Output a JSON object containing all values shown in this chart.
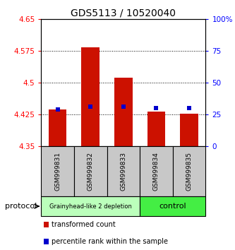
{
  "title": "GDS5113 / 10520040",
  "samples": [
    "GSM999831",
    "GSM999832",
    "GSM999833",
    "GSM999834",
    "GSM999835"
  ],
  "bar_bottoms": [
    4.35,
    4.35,
    4.35,
    4.35,
    4.35
  ],
  "bar_tops": [
    4.437,
    4.583,
    4.511,
    4.432,
    4.427
  ],
  "percentile_values": [
    4.437,
    4.444,
    4.444,
    4.44,
    4.44
  ],
  "bar_color": "#cc1100",
  "percentile_color": "#0000cc",
  "ylim": [
    4.35,
    4.65
  ],
  "yticks": [
    4.35,
    4.425,
    4.5,
    4.575,
    4.65
  ],
  "ytick_labels": [
    "4.35",
    "4.425",
    "4.5",
    "4.575",
    "4.65"
  ],
  "y2lim": [
    0,
    100
  ],
  "y2ticks": [
    0,
    25,
    50,
    75,
    100
  ],
  "y2tick_labels": [
    "0",
    "25",
    "50",
    "75",
    "100%"
  ],
  "groups": [
    {
      "label": "Grainyhead-like 2 depletion",
      "color": "#bbffbb",
      "samples": [
        0,
        1,
        2
      ]
    },
    {
      "label": "control",
      "color": "#44ee44",
      "samples": [
        3,
        4
      ]
    }
  ],
  "protocol_label": "protocol",
  "legend_items": [
    {
      "label": "transformed count",
      "color": "#cc1100"
    },
    {
      "label": "percentile rank within the sample",
      "color": "#0000cc"
    }
  ],
  "grid_color": "black",
  "background_plot": "white",
  "background_sample": "#c8c8c8",
  "sample_label_fontsize": 6.5,
  "title_fontsize": 10
}
